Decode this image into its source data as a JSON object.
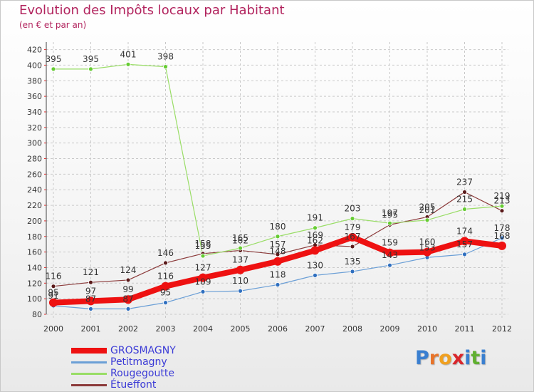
{
  "title": "Evolution des Impôts locaux par Habitant",
  "subtitle": "(en € et par an)",
  "brand": {
    "letters": [
      "P",
      "r",
      "o",
      "x",
      "i",
      "t",
      "i"
    ],
    "colors": [
      "#3a7fd0",
      "#e8742a",
      "#f0a020",
      "#d9262c",
      "#3a7fd0",
      "#60b030",
      "#3a7fd0"
    ]
  },
  "chart_data": {
    "type": "line",
    "title": "Evolution des Impôts locaux par Habitant",
    "subtitle": "(en € et par an)",
    "xlabel": "",
    "ylabel": "",
    "ylim": [
      80,
      420
    ],
    "y_ticks": [
      80,
      100,
      120,
      140,
      160,
      180,
      200,
      220,
      240,
      260,
      280,
      300,
      320,
      340,
      360,
      380,
      400,
      420
    ],
    "x": [
      2000,
      2001,
      2002,
      2003,
      2004,
      2005,
      2006,
      2007,
      2008,
      2009,
      2010,
      2011,
      2012
    ],
    "x_labels": [
      "2000",
      "2001",
      "2002",
      "2003",
      "2004",
      "2005",
      "2006",
      "2007",
      "2008",
      "2009",
      "2010",
      "2011",
      "2012"
    ],
    "legend_position": "bottom-left",
    "series": [
      {
        "name": "GROSMAGNY",
        "color": "#ee1111",
        "marker": "#ee1111",
        "values": [
          95,
          97,
          99,
          116,
          127,
          137,
          148,
          162,
          179,
          159,
          160,
          174,
          168
        ]
      },
      {
        "name": "Petitmagny",
        "color": "#6b9fd6",
        "marker": "#2f6fbf",
        "values": [
          91,
          87,
          87,
          95,
          109,
          110,
          118,
          130,
          135,
          143,
          153,
          157,
          178
        ]
      },
      {
        "name": "Rougegoutte",
        "color": "#99dd66",
        "marker": "#66cc33",
        "values": [
          395,
          395,
          401,
          398,
          155,
          165,
          180,
          191,
          203,
          197,
          201,
          215,
          219
        ]
      },
      {
        "name": "Étueffont",
        "color": "#8b3a3a",
        "marker": "#5a1a1a",
        "values": [
          116,
          121,
          124,
          146,
          158,
          162,
          157,
          169,
          167,
          195,
          205,
          237,
          213
        ]
      }
    ]
  }
}
